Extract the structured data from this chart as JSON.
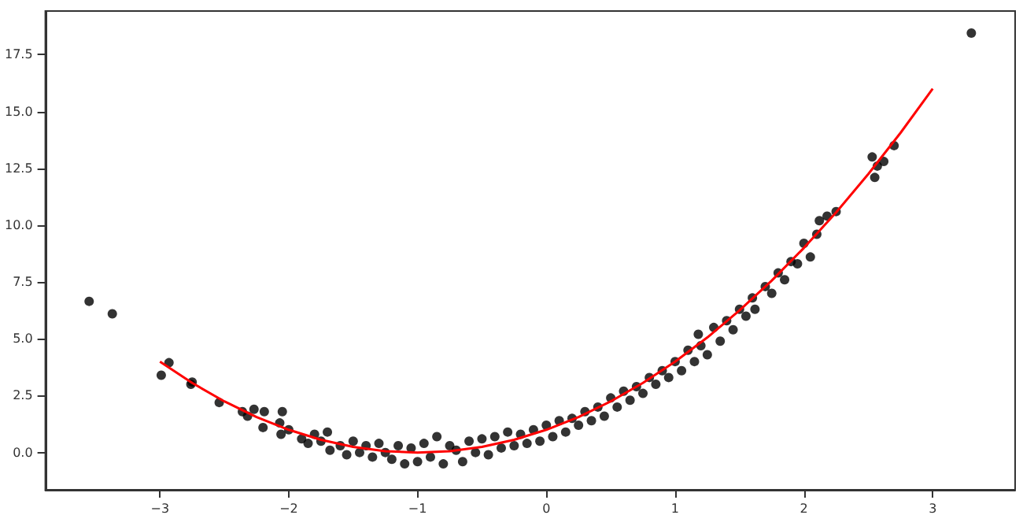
{
  "chart_data": {
    "type": "scatter",
    "marker": "circle",
    "grid": false,
    "xlim": [
      -3.89,
      3.64
    ],
    "ylim": [
      -1.64,
      19.42
    ],
    "xticks": [
      {
        "value": -3,
        "label": "−3"
      },
      {
        "value": -2,
        "label": "−2"
      },
      {
        "value": -1,
        "label": "−1"
      },
      0,
      1,
      2,
      3
    ],
    "yticks": [
      {
        "value": 0,
        "label": "0.0"
      },
      {
        "value": 2.5,
        "label": "2.5"
      },
      {
        "value": 5,
        "label": "5.0"
      },
      {
        "value": 7.5,
        "label": "7.5"
      },
      {
        "value": 10,
        "label": "10.0"
      },
      {
        "value": 12.5,
        "label": "12.5"
      },
      {
        "value": 15,
        "label": "15.0"
      },
      {
        "value": 17.5,
        "label": "17.5"
      }
    ],
    "series": [
      {
        "color": "#000000",
        "x": [
          -3.55,
          -3.37,
          -2.99,
          -2.93,
          -2.76,
          -2.75,
          -2.54,
          -2.36,
          -2.32,
          -2.27,
          -2.19,
          -2.2,
          -2.05,
          -2.06,
          -2.07,
          -2.0,
          -1.9,
          -1.85,
          -1.8,
          -1.75,
          -1.7,
          -1.68,
          -1.6,
          -1.55,
          -1.5,
          -1.45,
          -1.4,
          -1.35,
          -1.3,
          -1.25,
          -1.2,
          -1.15,
          -1.1,
          -1.05,
          -1.0,
          -0.95,
          -0.9,
          -0.85,
          -0.8,
          -0.75,
          -0.7,
          -0.65,
          -0.6,
          -0.55,
          -0.5,
          -0.45,
          -0.4,
          -0.35,
          -0.3,
          -0.25,
          -0.2,
          -0.15,
          -0.1,
          -0.05,
          0.0,
          0.05,
          0.1,
          0.15,
          0.2,
          0.25,
          0.3,
          0.35,
          0.4,
          0.45,
          0.5,
          0.55,
          0.6,
          0.65,
          0.7,
          0.75,
          0.8,
          0.85,
          0.9,
          0.95,
          1.0,
          1.05,
          1.1,
          1.15,
          1.18,
          1.2,
          1.25,
          1.3,
          1.35,
          1.4,
          1.45,
          1.5,
          1.55,
          1.6,
          1.62,
          1.7,
          1.75,
          1.8,
          1.85,
          1.9,
          1.95,
          2.0,
          2.05,
          2.1,
          2.12,
          2.18,
          2.25,
          2.53,
          2.55,
          2.57,
          2.62,
          2.7,
          3.3
        ],
        "values": [
          6.65,
          6.1,
          3.4,
          3.95,
          3.0,
          3.1,
          2.2,
          1.8,
          1.6,
          1.9,
          1.8,
          1.1,
          1.8,
          0.8,
          1.3,
          1.0,
          0.6,
          0.4,
          0.8,
          0.5,
          0.9,
          0.1,
          0.3,
          -0.1,
          0.5,
          0.0,
          0.3,
          -0.2,
          0.4,
          0.0,
          -0.3,
          0.3,
          -0.5,
          0.2,
          -0.4,
          0.4,
          -0.2,
          0.7,
          -0.5,
          0.3,
          0.1,
          -0.4,
          0.5,
          0.0,
          0.6,
          -0.1,
          0.7,
          0.2,
          0.9,
          0.3,
          0.8,
          0.4,
          1.0,
          0.5,
          1.2,
          0.7,
          1.4,
          0.9,
          1.5,
          1.2,
          1.8,
          1.4,
          2.0,
          1.6,
          2.4,
          2.0,
          2.7,
          2.3,
          2.9,
          2.6,
          3.3,
          3.0,
          3.6,
          3.3,
          4.0,
          3.6,
          4.5,
          4.0,
          5.2,
          4.7,
          4.3,
          5.5,
          4.9,
          5.8,
          5.4,
          6.3,
          6.0,
          6.8,
          6.3,
          7.3,
          7.0,
          7.9,
          7.6,
          8.4,
          8.3,
          9.2,
          8.6,
          9.6,
          10.2,
          10.4,
          10.6,
          13.0,
          12.1,
          12.6,
          12.8,
          13.5,
          18.45
        ]
      },
      {
        "type": "line",
        "color": "#ff0000",
        "marker": "none",
        "x": [
          -3,
          -2.75,
          -2.5,
          -2.25,
          -2,
          -1.75,
          -1.5,
          -1.25,
          -1,
          -0.75,
          -0.5,
          -0.25,
          0,
          0.25,
          0.5,
          0.75,
          1,
          1.25,
          1.5,
          1.75,
          2,
          2.25,
          2.5,
          2.75,
          3
        ],
        "values": [
          4,
          3.06,
          2.25,
          1.56,
          1,
          0.56,
          0.25,
          0.06,
          0,
          0.06,
          0.25,
          0.56,
          1,
          1.56,
          2.25,
          3.06,
          4,
          5.06,
          6.25,
          7.56,
          9,
          10.56,
          12.25,
          14.06,
          16
        ]
      }
    ]
  }
}
